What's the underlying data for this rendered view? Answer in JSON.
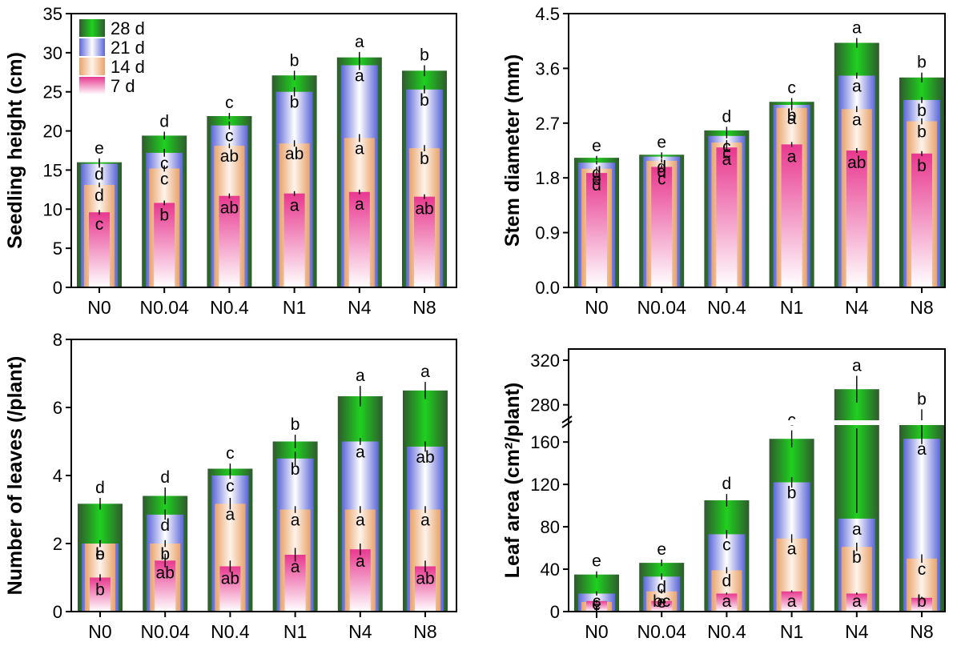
{
  "figure": {
    "categories": [
      "N0",
      "N0.04",
      "N0.4",
      "N1",
      "N4",
      "N8"
    ],
    "legend": {
      "entries": [
        {
          "label": "28 d",
          "series": "28 d"
        },
        {
          "label": "21 d",
          "series": "21 d"
        },
        {
          "label": "14 d",
          "series": "14 d"
        },
        {
          "label": "7 d",
          "series": "7 d"
        }
      ],
      "placement": "top-left of first panel"
    },
    "colors": {
      "28 d": {
        "edge": "#2f5a2e",
        "mid": "#1fd11f"
      },
      "21 d": {
        "edge": "#5b66d8",
        "mid": "#ffffff"
      },
      "14 d": {
        "edge": "#e8a36c",
        "mid": "#fff3ea"
      },
      "7 d": {
        "edge": "#e8388f",
        "mid": "#ffffff"
      },
      "axis": "#000000"
    }
  },
  "chart_data": [
    {
      "type": "bar",
      "id": "seedling-height",
      "ylabel": "Seedling height (cm)",
      "categories": [
        "N0",
        "N0.04",
        "N0.4",
        "N1",
        "N4",
        "N8"
      ],
      "ylim": [
        0,
        35
      ],
      "yticks": [
        0,
        5,
        10,
        15,
        20,
        25,
        30,
        35
      ],
      "ytick_labels": [
        "0",
        "5",
        "10",
        "15",
        "20",
        "25",
        "30",
        "35"
      ],
      "series": [
        {
          "name": "28 d",
          "values": [
            16.0,
            19.4,
            21.9,
            27.1,
            29.4,
            27.7
          ],
          "errors": [
            0.5,
            0.5,
            0.4,
            0.6,
            0.7,
            0.7
          ],
          "letters": [
            "e",
            "d",
            "c",
            "b",
            "a",
            "b"
          ]
        },
        {
          "name": "21 d",
          "values": [
            15.8,
            17.2,
            20.7,
            25.0,
            28.4,
            25.3
          ],
          "errors": [
            0.5,
            0.5,
            0.5,
            0.6,
            0.6,
            0.5
          ],
          "letters": [
            "d",
            "c",
            "c",
            "b",
            "a",
            "b"
          ]
        },
        {
          "name": "14 d",
          "values": [
            13.1,
            15.2,
            18.1,
            18.4,
            19.1,
            17.8
          ],
          "errors": [
            0.3,
            0.4,
            0.3,
            0.4,
            0.5,
            0.4
          ],
          "letters": [
            "d",
            "c",
            "ab",
            "ab",
            "a",
            "b"
          ]
        },
        {
          "name": "7 d",
          "values": [
            9.6,
            10.8,
            11.7,
            12.0,
            12.2,
            11.6
          ],
          "errors": [
            0.3,
            0.3,
            0.3,
            0.3,
            0.3,
            0.3
          ],
          "letters": [
            "c",
            "b",
            "ab",
            "a",
            "a",
            "ab"
          ]
        }
      ]
    },
    {
      "type": "bar",
      "id": "stem-diameter",
      "ylabel": "Stem diameter (mm)",
      "categories": [
        "N0",
        "N0.04",
        "N0.4",
        "N1",
        "N4",
        "N8"
      ],
      "ylim": [
        0,
        4.5
      ],
      "yticks": [
        0,
        0.9,
        1.8,
        2.7,
        3.6,
        4.5
      ],
      "ytick_labels": [
        "0.0",
        "0.9",
        "1.8",
        "2.7",
        "3.6",
        "4.5"
      ],
      "series": [
        {
          "name": "28 d",
          "values": [
            2.13,
            2.18,
            2.58,
            3.05,
            4.02,
            3.45
          ],
          "errors": [
            0.03,
            0.04,
            0.06,
            0.06,
            0.08,
            0.08
          ],
          "letters": [
            "e",
            "e",
            "d",
            "c",
            "a",
            "b"
          ]
        },
        {
          "name": "21 d",
          "values": [
            2.05,
            2.15,
            2.49,
            3.0,
            3.48,
            3.08
          ],
          "errors": [
            0.03,
            0.03,
            0.04,
            0.05,
            0.05,
            0.05
          ],
          "letters": [
            "d",
            "d",
            "c",
            "b",
            "a",
            "b"
          ]
        },
        {
          "name": "14 d",
          "values": [
            1.95,
            2.08,
            2.38,
            2.95,
            2.93,
            2.73
          ],
          "errors": [
            0.03,
            0.03,
            0.04,
            0.04,
            0.05,
            0.05
          ],
          "letters": [
            "e",
            "d",
            "c",
            "a",
            "a",
            "b"
          ]
        },
        {
          "name": "7 d",
          "values": [
            1.88,
            1.98,
            2.3,
            2.35,
            2.25,
            2.2
          ],
          "errors": [
            0.03,
            0.03,
            0.04,
            0.04,
            0.04,
            0.04
          ],
          "letters": [
            "d",
            "c",
            "a",
            "a",
            "ab",
            "b"
          ]
        }
      ]
    },
    {
      "type": "bar",
      "id": "number-of-leaves",
      "ylabel": "Number of leaves (/plant)",
      "categories": [
        "N0",
        "N0.04",
        "N0.4",
        "N1",
        "N4",
        "N8"
      ],
      "ylim": [
        0,
        8
      ],
      "yticks": [
        0,
        2,
        4,
        6,
        8
      ],
      "ytick_labels": [
        "0",
        "2",
        "4",
        "6",
        "8"
      ],
      "series": [
        {
          "name": "28 d",
          "values": [
            3.17,
            3.4,
            4.2,
            5.0,
            6.33,
            6.5
          ],
          "errors": [
            0.17,
            0.25,
            0.15,
            0.2,
            0.3,
            0.25
          ],
          "letters": [
            "d",
            "d",
            "c",
            "b",
            "a",
            "a"
          ]
        },
        {
          "name": "21 d",
          "values": [
            2.0,
            2.85,
            4.0,
            4.5,
            5.0,
            4.85
          ],
          "errors": [
            0.1,
            0.15,
            0.1,
            0.2,
            0.1,
            0.15
          ],
          "letters": [
            "e",
            "d",
            "c",
            "b",
            "a",
            "ab"
          ]
        },
        {
          "name": "14 d",
          "values": [
            2.0,
            2.0,
            3.17,
            3.0,
            3.0,
            3.0
          ],
          "errors": [
            0.1,
            0.1,
            0.17,
            0.1,
            0.1,
            0.1
          ],
          "letters": [
            "b",
            "b",
            "a",
            "a",
            "a",
            "a"
          ]
        },
        {
          "name": "7 d",
          "values": [
            1.0,
            1.5,
            1.33,
            1.67,
            1.83,
            1.33
          ],
          "errors": [
            0.1,
            0.2,
            0.17,
            0.2,
            0.17,
            0.17
          ],
          "letters": [
            "b",
            "ab",
            "ab",
            "a",
            "a",
            "ab"
          ]
        }
      ]
    },
    {
      "type": "bar",
      "id": "leaf-area",
      "ylabel": "Leaf area (cm²/plant)",
      "categories": [
        "N0",
        "N0.04",
        "N0.4",
        "N1",
        "N4",
        "N8"
      ],
      "ylim": [
        0,
        330
      ],
      "axis_break": [
        175,
        265
      ],
      "yticks": [
        0,
        40,
        80,
        120,
        160,
        280,
        320
      ],
      "ytick_labels": [
        "0",
        "40",
        "80",
        "120",
        "160",
        "280",
        "320"
      ],
      "series": [
        {
          "name": "28 d",
          "values": [
            35,
            46,
            105,
            163,
            294,
            264
          ],
          "errors": [
            3,
            3,
            6,
            8,
            12,
            12
          ],
          "letters": [
            "e",
            "e",
            "d",
            "c",
            "a",
            "b"
          ]
        },
        {
          "name": "21 d",
          "values": [
            17,
            33,
            73,
            122,
            178,
            163
          ],
          "errors": [
            2,
            3,
            4,
            5,
            5,
            5
          ],
          "letters": [
            "e",
            "d",
            "c",
            "b",
            "a",
            "a"
          ]
        },
        {
          "name": "14 d",
          "values": [
            9,
            19,
            39,
            69,
            61,
            50
          ],
          "errors": [
            1,
            2,
            3,
            4,
            4,
            4
          ],
          "letters": [
            "f",
            "e",
            "d",
            "a",
            "b",
            "c"
          ]
        },
        {
          "name": "7 d",
          "values": [
            10,
            10,
            17,
            19,
            17,
            13
          ],
          "errors": [
            1,
            1,
            1,
            1,
            1,
            1
          ],
          "letters": [
            "c",
            "bc",
            "a",
            "a",
            "a",
            "b"
          ]
        }
      ]
    }
  ]
}
